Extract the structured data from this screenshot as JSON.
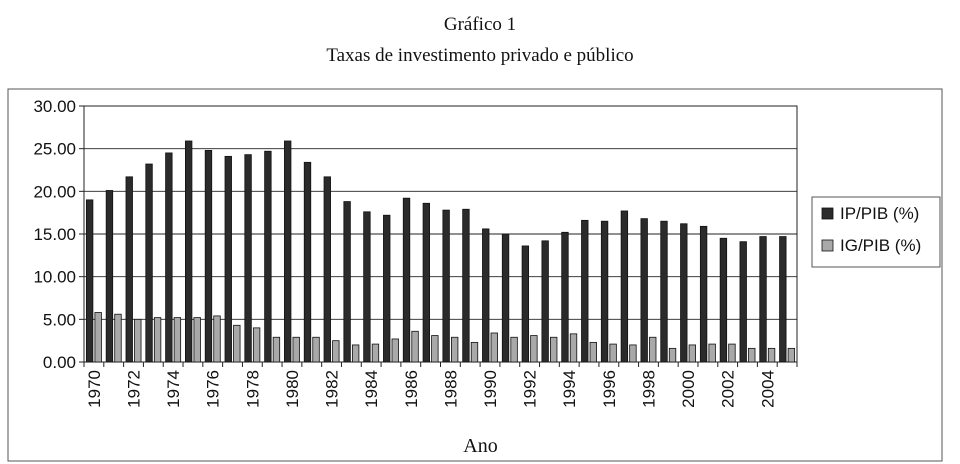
{
  "header": {
    "title": "Gráfico 1",
    "subtitle": "Taxas de investimento privado e público"
  },
  "chart_data": {
    "type": "bar",
    "title": "Gráfico 1",
    "subtitle": "Taxas de investimento privado e público",
    "xlabel": "Ano",
    "ylabel": "",
    "ylim": [
      0,
      30
    ],
    "yticks": [
      "0.00",
      "5.00",
      "10.00",
      "15.00",
      "20.00",
      "25.00",
      "30.00"
    ],
    "xticks": [
      "1970",
      "1972",
      "1974",
      "1976",
      "1978",
      "1980",
      "1982",
      "1984",
      "1986",
      "1988",
      "1990",
      "1992",
      "1994",
      "1996",
      "1998",
      "2000",
      "2002",
      "2004"
    ],
    "categories": [
      1970,
      1971,
      1972,
      1973,
      1974,
      1975,
      1976,
      1977,
      1978,
      1979,
      1980,
      1981,
      1982,
      1983,
      1984,
      1985,
      1986,
      1987,
      1988,
      1989,
      1990,
      1991,
      1992,
      1993,
      1994,
      1995,
      1996,
      1997,
      1998,
      1999,
      2000,
      2001,
      2002,
      2003,
      2004,
      2005
    ],
    "series": [
      {
        "name": "IP/PIB (%)",
        "color": "#2b2b2b",
        "values": [
          19.0,
          20.1,
          21.7,
          23.2,
          24.5,
          25.9,
          24.8,
          24.1,
          24.3,
          24.7,
          25.9,
          23.4,
          21.7,
          18.8,
          17.6,
          17.2,
          19.2,
          18.6,
          17.8,
          17.9,
          15.6,
          15.0,
          13.6,
          14.2,
          15.2,
          16.6,
          16.5,
          17.7,
          16.8,
          16.5,
          16.2,
          15.9,
          14.5,
          14.1,
          14.7,
          14.7
        ]
      },
      {
        "name": "IG/PIB (%)",
        "color": "#a9a9a9",
        "values": [
          5.8,
          5.6,
          5.0,
          5.2,
          5.2,
          5.2,
          5.4,
          4.3,
          4.0,
          2.9,
          2.9,
          2.9,
          2.5,
          2.0,
          2.1,
          2.7,
          3.6,
          3.1,
          2.9,
          2.3,
          3.4,
          2.9,
          3.1,
          2.9,
          3.3,
          2.3,
          2.1,
          2.0,
          2.9,
          1.6,
          2.0,
          2.1,
          2.1,
          1.6,
          1.6,
          1.6
        ]
      }
    ],
    "grid": "horizontal",
    "legend": "right"
  }
}
